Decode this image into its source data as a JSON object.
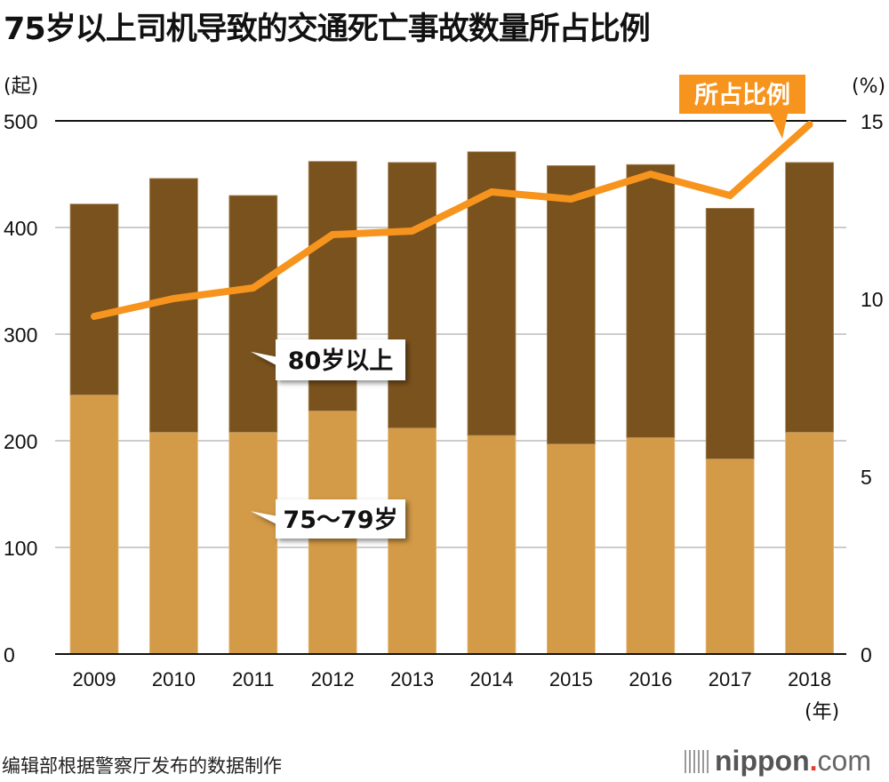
{
  "title": "75岁以上司机导致的交通死亡事故数量所占比例",
  "source": "编辑部根据警察厅发布的数据制作",
  "logo": {
    "name": "nippon",
    "dot": ".",
    "tld": "com"
  },
  "colors": {
    "age_80_plus": "#7a521d",
    "age_75_79": "#d39a47",
    "ratio_line": "#f7941e",
    "axis": "#111111",
    "grid": "#cccccc"
  },
  "chart_data": {
    "type": "bar",
    "stacked": true,
    "title": "75岁以上司机导致的交通死亡事故数量所占比例",
    "categories": [
      "2009",
      "2010",
      "2011",
      "2012",
      "2013",
      "2014",
      "2015",
      "2016",
      "2017",
      "2018"
    ],
    "xlabel": "（年）",
    "ylabel": "（起）",
    "ylabel_right": "(%)",
    "ylim": [
      0,
      500
    ],
    "yticks": [
      0,
      100,
      200,
      300,
      400,
      500
    ],
    "ylim_right": [
      0,
      15
    ],
    "yticks_right": [
      0,
      5,
      10,
      15
    ],
    "grid": true,
    "series": [
      {
        "name": "75～79岁",
        "type": "bar",
        "axis": "left",
        "values": [
          243,
          208,
          208,
          228,
          212,
          205,
          197,
          203,
          183,
          208
        ]
      },
      {
        "name": "80岁以上",
        "type": "bar",
        "axis": "left",
        "values": [
          179,
          238,
          222,
          234,
          249,
          266,
          261,
          256,
          235,
          253
        ]
      },
      {
        "name": "所占比例",
        "type": "line",
        "axis": "right",
        "values": [
          9.5,
          10.0,
          10.3,
          11.8,
          11.9,
          13.0,
          12.8,
          13.5,
          12.9,
          14.9
        ]
      }
    ],
    "totals": [
      422,
      446,
      430,
      462,
      461,
      471,
      458,
      459,
      418,
      461
    ],
    "annotations": [
      {
        "label": "80岁以上",
        "target": "80岁以上"
      },
      {
        "label": "75～79岁",
        "target": "75～79岁"
      },
      {
        "label": "所占比例",
        "target": "所占比例"
      }
    ]
  }
}
